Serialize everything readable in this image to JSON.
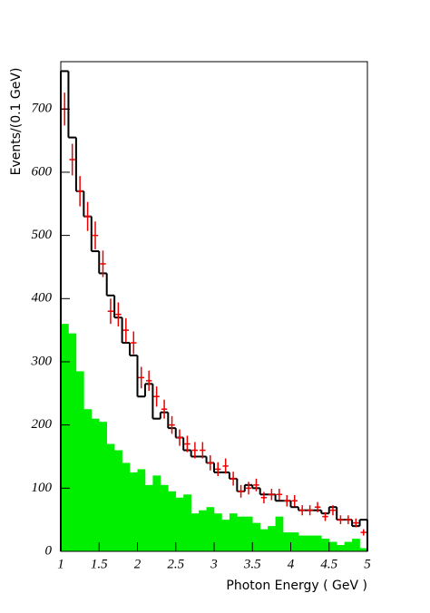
{
  "chart_data": {
    "type": "histogram",
    "xlabel": "Photon Energy ( GeV )",
    "ylabel": "Events/(0.1 GeV)",
    "bins": [
      1.0,
      1.1,
      1.2,
      1.3,
      1.4,
      1.5,
      1.6,
      1.7,
      1.8,
      1.9,
      2.0,
      2.1,
      2.2,
      2.3,
      2.4,
      2.5,
      2.6,
      2.7,
      2.8,
      2.9,
      3.0,
      3.1,
      3.2,
      3.3,
      3.4,
      3.5,
      3.6,
      3.7,
      3.8,
      3.9,
      4.0,
      4.1,
      4.2,
      4.3,
      4.4,
      4.5,
      4.6,
      4.7,
      4.8,
      4.9,
      5.0
    ],
    "series": [
      {
        "style": "filled",
        "color": "#00ee00",
        "values": [
          360,
          345,
          285,
          225,
          210,
          205,
          170,
          160,
          140,
          125,
          130,
          105,
          120,
          105,
          95,
          85,
          90,
          60,
          65,
          70,
          60,
          50,
          60,
          55,
          55,
          45,
          35,
          40,
          55,
          30,
          30,
          25,
          25,
          25,
          20,
          15,
          10,
          15,
          20,
          5
        ]
      },
      {
        "style": "step",
        "color": "#000000",
        "values": [
          760,
          655,
          570,
          530,
          475,
          440,
          405,
          370,
          330,
          310,
          245,
          265,
          210,
          220,
          195,
          180,
          160,
          150,
          150,
          140,
          125,
          125,
          115,
          95,
          105,
          100,
          90,
          90,
          80,
          80,
          70,
          65,
          65,
          65,
          60,
          70,
          50,
          50,
          40,
          50
        ]
      },
      {
        "style": "points",
        "color": "#ee0000",
        "values": [
          700,
          620,
          570,
          530,
          500,
          455,
          380,
          375,
          350,
          330,
          275,
          270,
          245,
          225,
          200,
          180,
          170,
          160,
          160,
          140,
          130,
          135,
          115,
          95,
          100,
          105,
          85,
          90,
          90,
          80,
          80,
          65,
          65,
          70,
          55,
          65,
          50,
          50,
          45,
          30
        ],
        "errors": [
          26,
          25,
          24,
          23,
          22,
          21,
          20,
          19,
          19,
          18,
          17,
          16,
          16,
          15,
          14,
          13,
          13,
          13,
          13,
          12,
          11,
          12,
          11,
          10,
          10,
          10,
          9,
          9,
          9,
          9,
          9,
          8,
          8,
          8,
          7,
          8,
          7,
          7,
          7,
          5
        ]
      }
    ],
    "xlim": [
      1,
      5
    ],
    "ylim": [
      0,
      775
    ],
    "xticks": [
      1,
      1.5,
      2,
      2.5,
      3,
      3.5,
      4,
      4.5,
      5
    ],
    "yticks": [
      0,
      100,
      200,
      300,
      400,
      500,
      600,
      700
    ]
  }
}
